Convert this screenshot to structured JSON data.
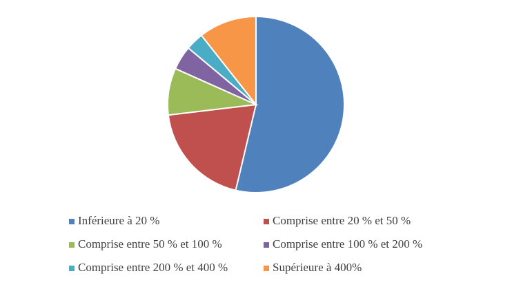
{
  "chart_data": {
    "type": "pie",
    "categories": [
      "Inférieure à 20 %",
      "Comprise entre 20 % et 50 %",
      "Comprise entre 50 % et 100 %",
      "Comprise entre 100 % et 200 %",
      "Comprise entre 200 % et 400 %",
      "Supérieure à 400%"
    ],
    "values": [
      53.7,
      19.4,
      8.6,
      4.4,
      3.3,
      10.6
    ],
    "colors": [
      "#4f81bd",
      "#c0504d",
      "#9bbb59",
      "#8064a2",
      "#4bacc6",
      "#f79646"
    ],
    "legend": "bottom"
  }
}
